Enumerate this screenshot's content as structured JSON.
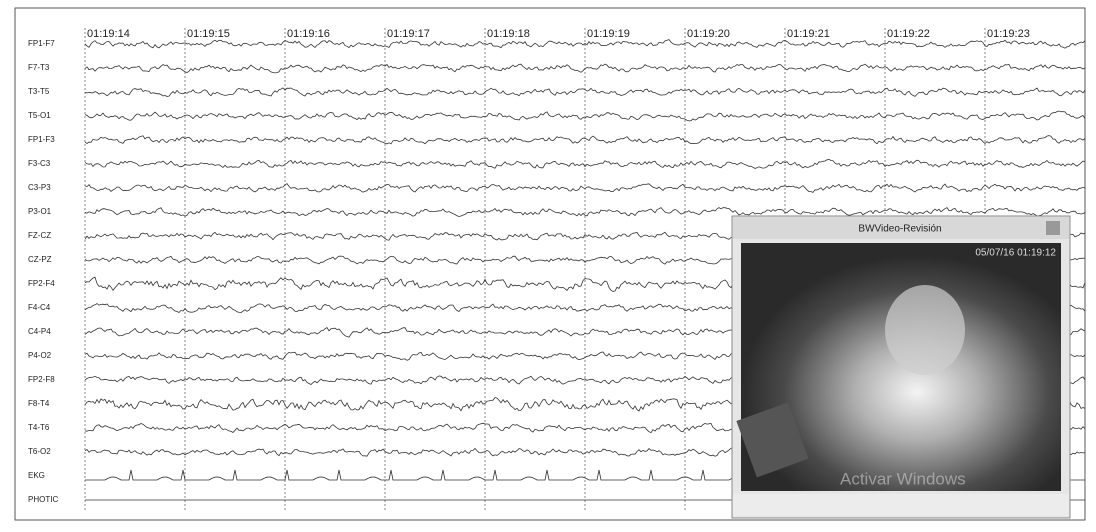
{
  "channels": [
    "FP1-F7",
    "F7-T3",
    "T3-T5",
    "T5-O1",
    "FP1-F3",
    "F3-C3",
    "C3-P3",
    "P3-O1",
    "FZ-CZ",
    "CZ-PZ",
    "FP2-F4",
    "F4-C4",
    "C4-P4",
    "P4-O2",
    "FP2-F8",
    "F8-T4",
    "T4-T6",
    "T6-O2",
    "EKG",
    "PHOTIC"
  ],
  "time_labels": [
    "01:19:14",
    "01:19:15",
    "01:19:16",
    "01:19:17",
    "01:19:18",
    "01:19:19",
    "01:19:20",
    "01:19:21",
    "01:19:22",
    "01:19:23"
  ],
  "video": {
    "title": "BWVideo-Revisión",
    "timestamp": "05/07/16 01:19:12",
    "watermark": "Activar Windows"
  }
}
